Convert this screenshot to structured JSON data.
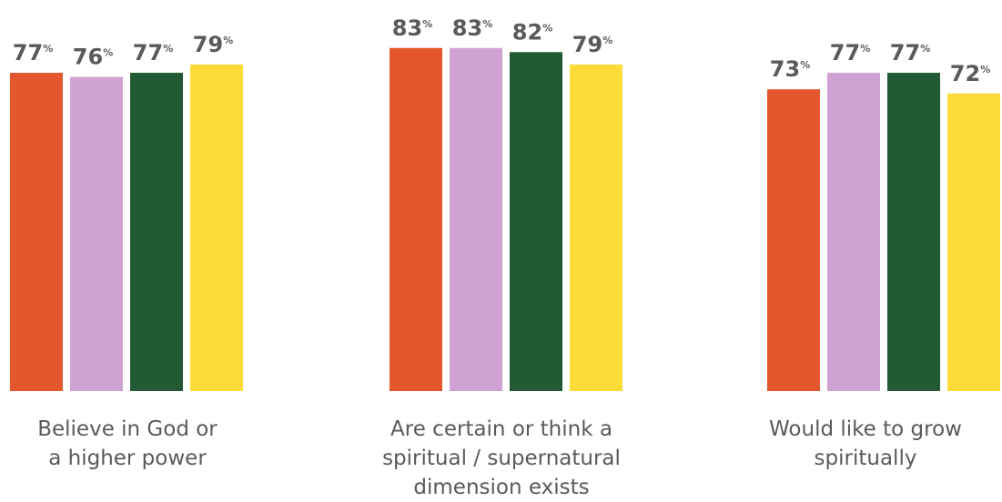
{
  "chart_data": {
    "type": "bar",
    "categories": [
      "Believe in God or a higher power",
      "Are certain or think a spiritual / supernatural dimension exists",
      "Would like to grow spiritually"
    ],
    "category_label_lines": [
      [
        "Believe in God or",
        "a higher power"
      ],
      [
        "Are certain or think a",
        "spiritual / supernatural",
        "dimension exists"
      ],
      [
        "Would like to grow",
        "spiritually"
      ]
    ],
    "series": [
      {
        "color": "#e4572e",
        "values": [
          77,
          83,
          73
        ]
      },
      {
        "color": "#cfa2d3",
        "values": [
          76,
          83,
          77
        ]
      },
      {
        "color": "#215a33",
        "values": [
          77,
          82,
          77
        ]
      },
      {
        "color": "#fddc3a",
        "values": [
          79,
          79,
          72
        ]
      }
    ],
    "value_suffix": "%",
    "ylim": [
      0,
      100
    ],
    "grid": false,
    "legend": "none"
  }
}
